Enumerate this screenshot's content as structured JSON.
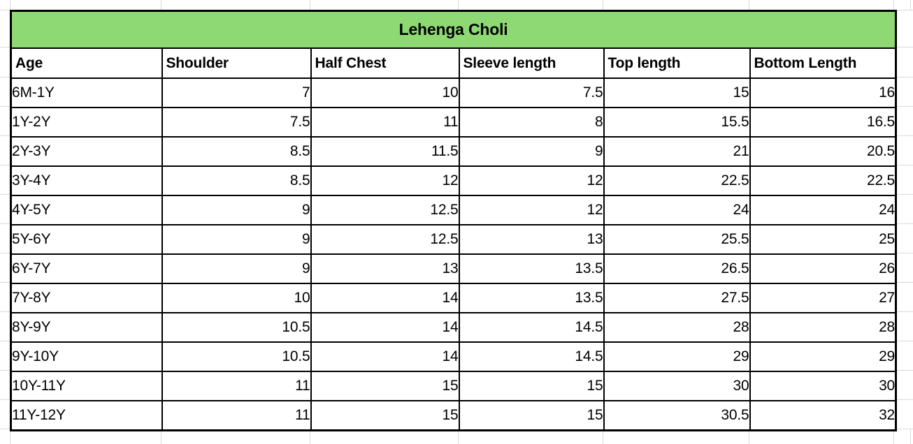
{
  "sheet": {
    "title": "Lehenga Choli",
    "columns": [
      "Age",
      "Shoulder",
      "Half Chest",
      "Sleeve length",
      "Top length",
      "Bottom Length"
    ],
    "rows": [
      [
        "6M-1Y",
        "7",
        "10",
        "7.5",
        "15",
        "16"
      ],
      [
        "1Y-2Y",
        "7.5",
        "11",
        "8",
        "15.5",
        "16.5"
      ],
      [
        "2Y-3Y",
        "8.5",
        "11.5",
        "9",
        "21",
        "20.5"
      ],
      [
        "3Y-4Y",
        "8.5",
        "12",
        "12",
        "22.5",
        "22.5"
      ],
      [
        "4Y-5Y",
        "9",
        "12.5",
        "12",
        "24",
        "24"
      ],
      [
        "5Y-6Y",
        "9",
        "12.5",
        "13",
        "25.5",
        "25"
      ],
      [
        "6Y-7Y",
        "9",
        "13",
        "13.5",
        "26.5",
        "26"
      ],
      [
        "7Y-8Y",
        "10",
        "14",
        "13.5",
        "27.5",
        "27"
      ],
      [
        "8Y-9Y",
        "10.5",
        "14",
        "14.5",
        "28",
        "28"
      ],
      [
        "9Y-10Y",
        "10.5",
        "14",
        "14.5",
        "29",
        "29"
      ],
      [
        "10Y-11Y",
        "11",
        "15",
        "15",
        "30",
        "30"
      ],
      [
        "11Y-12Y",
        "11",
        "15",
        "15",
        "30.5",
        "32"
      ]
    ],
    "colors": {
      "title_bg": "#8ED973",
      "border": "#000000",
      "gridline": "#D9D9D9",
      "text": "#000000",
      "background": "#FFFFFF"
    }
  }
}
